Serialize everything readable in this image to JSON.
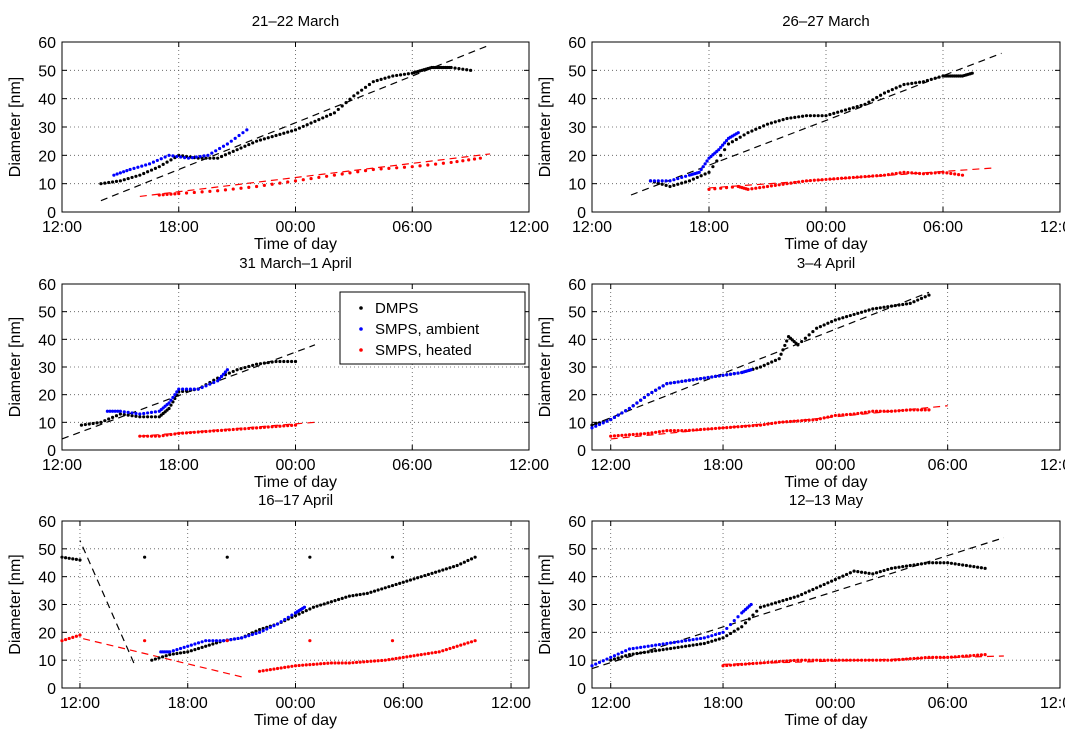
{
  "figure": {
    "xlabel": "Time of day",
    "ylabel": "Diameter [nm]",
    "legend": {
      "placement": "inside panel 3, top-right",
      "entries": [
        {
          "label": "DMPS",
          "color": "#000000"
        },
        {
          "label": "SMPS, ambient",
          "color": "#0000ff"
        },
        {
          "label": "SMPS, heated",
          "color": "#ff0000"
        }
      ]
    }
  },
  "chart_data": [
    {
      "type": "scatter",
      "title": "21–22 March",
      "xlabel": "Time of day",
      "ylabel": "Diameter [nm]",
      "xlim": [
        "12:00",
        "12:00 next day"
      ],
      "ylim": [
        0,
        60
      ],
      "xticks": [
        "12:00",
        "18:00",
        "00:00",
        "06:00",
        "12:00"
      ],
      "yticks": [
        0,
        10,
        20,
        30,
        40,
        50,
        60
      ],
      "grid": true,
      "series": [
        {
          "name": "DMPS",
          "color": "#000000",
          "x": [
            "14:00",
            "15:00",
            "16:00",
            "17:00",
            "18:00",
            "19:00",
            "20:00",
            "21:00",
            "22:00",
            "23:00",
            "00:00",
            "01:00",
            "02:00",
            "03:00",
            "04:00",
            "05:00",
            "06:00",
            "06:30",
            "07:00",
            "07:30",
            "08:00",
            "09:00"
          ],
          "y": [
            10,
            11,
            13,
            16,
            20,
            19,
            19,
            22,
            25,
            27,
            29,
            32,
            35,
            41,
            46,
            48,
            49,
            50,
            51,
            51,
            51,
            50
          ]
        },
        {
          "name": "SMPS, ambient",
          "color": "#0000ff",
          "x": [
            "14:40",
            "15:30",
            "16:30",
            "17:30",
            "18:30",
            "19:30",
            "20:30",
            "21:30"
          ],
          "y": [
            13,
            15,
            17,
            20,
            19,
            20,
            24,
            29
          ]
        },
        {
          "name": "SMPS, heated",
          "color": "#ff0000",
          "x": [
            "17:00",
            "18:00",
            "20:00",
            "22:00",
            "00:00",
            "02:00",
            "04:00",
            "06:00",
            "08:00",
            "09:30"
          ],
          "y": [
            6,
            6.5,
            7.5,
            9,
            11,
            13,
            15,
            16,
            17.5,
            19
          ]
        }
      ],
      "fits": [
        {
          "color": "#000000",
          "x": [
            "14:00",
            "10:00"
          ],
          "y": [
            4,
            59
          ]
        },
        {
          "color": "#ff0000",
          "x": [
            "16:00",
            "10:00"
          ],
          "y": [
            5.5,
            20.5
          ]
        }
      ]
    },
    {
      "type": "scatter",
      "title": "26–27 March",
      "xlabel": "Time of day",
      "ylabel": "Diameter [nm]",
      "xlim": [
        "12:00",
        "12:00 next day"
      ],
      "ylim": [
        0,
        60
      ],
      "xticks": [
        "12:00",
        "18:00",
        "00:00",
        "06:00",
        "12:00"
      ],
      "yticks": [
        0,
        10,
        20,
        30,
        40,
        50,
        60
      ],
      "grid": true,
      "series": [
        {
          "name": "DMPS",
          "color": "#000000",
          "x": [
            "15:00",
            "16:00",
            "17:00",
            "18:00",
            "19:00",
            "20:00",
            "21:00",
            "22:00",
            "23:00",
            "00:00",
            "01:00",
            "02:00",
            "03:00",
            "04:00",
            "05:00",
            "06:00",
            "06:30",
            "07:00",
            "07:30"
          ],
          "y": [
            11,
            9,
            11,
            14,
            24,
            28,
            31,
            33,
            34,
            34,
            36,
            38,
            42,
            45,
            46,
            48,
            48,
            48,
            49
          ]
        },
        {
          "name": "SMPS, ambient",
          "color": "#0000ff",
          "x": [
            "15:00",
            "16:00",
            "17:00",
            "17:30",
            "18:00",
            "18:30",
            "19:00",
            "19:30"
          ],
          "y": [
            11,
            11,
            13,
            14,
            19,
            22,
            26,
            28
          ]
        },
        {
          "name": "SMPS, heated",
          "color": "#ff0000",
          "x": [
            "18:00",
            "19:30",
            "20:00",
            "21:00",
            "22:00",
            "23:00",
            "00:00",
            "01:00",
            "02:00",
            "03:00",
            "04:00",
            "05:00",
            "06:00",
            "07:00"
          ],
          "y": [
            8,
            9,
            8,
            9,
            10,
            11,
            11.5,
            12,
            12.5,
            13,
            14,
            13.5,
            14,
            13
          ]
        }
      ],
      "fits": [
        {
          "color": "#000000",
          "x": [
            "14:00",
            "09:00"
          ],
          "y": [
            6,
            56
          ]
        },
        {
          "color": "#ff0000",
          "x": [
            "18:00",
            "08:30"
          ],
          "y": [
            8.5,
            15.5
          ]
        }
      ]
    },
    {
      "type": "scatter",
      "title": "31 March–1 April",
      "xlabel": "Time of day",
      "ylabel": "Diameter [nm]",
      "xlim": [
        "12:00",
        "12:00 next day"
      ],
      "ylim": [
        0,
        60
      ],
      "xticks": [
        "12:00",
        "18:00",
        "00:00",
        "06:00",
        "12:00"
      ],
      "yticks": [
        0,
        10,
        20,
        30,
        40,
        50,
        60
      ],
      "grid": true,
      "series": [
        {
          "name": "DMPS",
          "color": "#000000",
          "x": [
            "13:00",
            "14:00",
            "15:00",
            "16:00",
            "17:00",
            "17:30",
            "18:00",
            "19:00",
            "20:00",
            "21:00",
            "22:00",
            "23:00",
            "00:00"
          ],
          "y": [
            9,
            10,
            13,
            12,
            12,
            15,
            21,
            22,
            26,
            29,
            31,
            32,
            32
          ]
        },
        {
          "name": "SMPS, ambient",
          "color": "#0000ff",
          "x": [
            "14:20",
            "15:00",
            "16:00",
            "17:00",
            "17:30",
            "18:00",
            "19:00",
            "20:00",
            "20:30"
          ],
          "y": [
            14,
            14,
            13,
            14,
            17,
            22,
            22,
            25,
            29
          ]
        },
        {
          "name": "SMPS, heated",
          "color": "#ff0000",
          "x": [
            "16:00",
            "17:00",
            "18:00",
            "19:00",
            "20:00",
            "21:00",
            "22:00",
            "23:00",
            "00:00"
          ],
          "y": [
            5,
            5,
            6,
            6.5,
            7,
            7.5,
            8,
            8.5,
            9
          ]
        }
      ],
      "fits": [
        {
          "color": "#000000",
          "x": [
            "12:00",
            "01:00"
          ],
          "y": [
            4,
            38
          ]
        },
        {
          "color": "#ff0000",
          "x": [
            "16:00",
            "01:00"
          ],
          "y": [
            5,
            10
          ]
        }
      ]
    },
    {
      "type": "scatter",
      "title": "3–4 April",
      "xlabel": "Time of day",
      "ylabel": "Diameter [nm]",
      "xlim": [
        "11:00",
        "12:00 next day"
      ],
      "ylim": [
        0,
        60
      ],
      "xticks": [
        "12:00",
        "18:00",
        "00:00",
        "06:00",
        "12:00"
      ],
      "yticks": [
        0,
        10,
        20,
        30,
        40,
        50,
        60
      ],
      "grid": true,
      "series": [
        {
          "name": "DMPS",
          "color": "#000000",
          "x": [
            "11:00",
            "12:00",
            "13:00",
            "14:00",
            "15:00",
            "16:00",
            "17:00",
            "18:00",
            "19:00",
            "20:00",
            "21:00",
            "21:30",
            "22:00",
            "23:00",
            "00:00",
            "01:00",
            "02:00",
            "03:00",
            "04:00",
            "05:00"
          ],
          "y": [
            9,
            11,
            15,
            20,
            24,
            25,
            26,
            27,
            28,
            30,
            33,
            41,
            38,
            44,
            47,
            49,
            51,
            52,
            53,
            56
          ]
        },
        {
          "name": "SMPS, ambient",
          "color": "#0000ff",
          "x": [
            "11:00",
            "12:00",
            "13:00",
            "14:00",
            "15:00",
            "16:00",
            "17:00",
            "18:00",
            "19:00",
            "19:30"
          ],
          "y": [
            8,
            11,
            15,
            20,
            24,
            25,
            26,
            27,
            28,
            29
          ]
        },
        {
          "name": "SMPS, heated",
          "color": "#ff0000",
          "x": [
            "12:00",
            "13:00",
            "14:00",
            "15:00",
            "16:00",
            "17:00",
            "18:00",
            "19:00",
            "20:00",
            "21:00",
            "22:00",
            "23:00",
            "00:00",
            "01:00",
            "02:00",
            "03:00",
            "04:00",
            "05:00"
          ],
          "y": [
            5,
            5.5,
            6,
            7,
            7,
            7.5,
            8,
            8.5,
            9,
            10,
            10.5,
            11,
            12.5,
            13,
            14,
            14,
            14.5,
            14.5
          ]
        }
      ],
      "fits": [
        {
          "color": "#000000",
          "x": [
            "11:00",
            "05:00"
          ],
          "y": [
            9,
            57
          ]
        },
        {
          "color": "#ff0000",
          "x": [
            "12:00",
            "06:00"
          ],
          "y": [
            4,
            16
          ]
        }
      ]
    },
    {
      "type": "scatter",
      "title": "16–17 April",
      "xlabel": "Time of day",
      "ylabel": "Diameter [nm]",
      "xlim": [
        "11:00",
        "13:00 next day"
      ],
      "ylim": [
        0,
        60
      ],
      "xticks": [
        "12:00",
        "18:00",
        "00:00",
        "06:00",
        "12:00"
      ],
      "yticks": [
        0,
        10,
        20,
        30,
        40,
        50,
        60
      ],
      "grid": true,
      "series": [
        {
          "name": "DMPS",
          "color": "#000000",
          "x": [
            "16:00",
            "17:00",
            "18:00",
            "19:00",
            "20:00",
            "21:00",
            "22:00",
            "23:00",
            "00:00",
            "01:00",
            "02:00",
            "03:00",
            "04:00",
            "05:00",
            "06:00",
            "07:00",
            "08:00",
            "09:00",
            "10:00",
            "11:00",
            "12:00"
          ],
          "y": [
            10,
            12,
            13,
            15,
            17,
            18,
            21,
            23,
            26,
            29,
            31,
            33,
            34,
            36,
            38,
            40,
            42,
            44,
            47,
            47,
            46
          ]
        },
        {
          "name": "SMPS, ambient",
          "color": "#0000ff",
          "x": [
            "16:30",
            "17:00",
            "18:00",
            "19:00",
            "20:00",
            "21:00",
            "22:00",
            "23:00",
            "00:00",
            "00:30"
          ],
          "y": [
            13,
            13,
            15,
            17,
            17,
            18,
            20,
            23,
            27,
            29
          ]
        },
        {
          "name": "SMPS, heated",
          "color": "#ff0000",
          "x": [
            "22:00",
            "23:00",
            "00:00",
            "01:00",
            "02:00",
            "03:00",
            "04:00",
            "05:00",
            "06:00",
            "07:00",
            "08:00",
            "09:00",
            "10:00",
            "11:00",
            "12:00"
          ],
          "y": [
            6,
            7,
            8,
            8.5,
            9,
            9,
            9.5,
            10,
            11,
            12,
            13,
            15,
            17,
            17,
            19
          ]
        }
      ],
      "fits": [
        {
          "color": "#000000",
          "x": [
            "15:00",
            "12:00"
          ],
          "y": [
            9,
            53
          ]
        },
        {
          "color": "#ff0000",
          "x": [
            "21:00",
            "12:00"
          ],
          "y": [
            4,
            18
          ]
        }
      ]
    },
    {
      "type": "scatter",
      "title": "12–13 May",
      "xlabel": "Time of day",
      "ylabel": "Diameter [nm]",
      "xlim": [
        "11:00",
        "12:00 next day"
      ],
      "ylim": [
        0,
        60
      ],
      "xticks": [
        "12:00",
        "18:00",
        "00:00",
        "06:00",
        "12:00"
      ],
      "yticks": [
        0,
        10,
        20,
        30,
        40,
        50,
        60
      ],
      "grid": true,
      "series": [
        {
          "name": "DMPS",
          "color": "#000000",
          "x": [
            "12:00",
            "13:00",
            "14:00",
            "15:00",
            "16:00",
            "17:00",
            "18:00",
            "19:00",
            "20:00",
            "21:00",
            "22:00",
            "23:00",
            "00:00",
            "01:00",
            "02:00",
            "03:00",
            "04:00",
            "05:00",
            "06:00",
            "07:00",
            "08:00"
          ],
          "y": [
            10,
            12,
            13,
            14,
            15,
            16,
            18,
            22,
            29,
            31,
            33,
            36,
            39,
            42,
            41,
            43,
            44,
            45,
            45,
            44,
            43
          ]
        },
        {
          "name": "SMPS, ambient",
          "color": "#0000ff",
          "x": [
            "11:00",
            "12:00",
            "13:00",
            "14:00",
            "15:00",
            "16:00",
            "17:00",
            "18:00",
            "19:00",
            "19:30"
          ],
          "y": [
            8,
            11,
            14,
            15,
            16,
            17,
            18,
            20,
            27,
            30
          ]
        },
        {
          "name": "SMPS, heated",
          "color": "#ff0000",
          "x": [
            "18:00",
            "19:00",
            "20:00",
            "21:00",
            "22:00",
            "23:00",
            "00:00",
            "01:00",
            "02:00",
            "03:00",
            "04:00",
            "05:00",
            "06:00",
            "07:00",
            "08:00"
          ],
          "y": [
            8,
            8.5,
            9,
            9.5,
            10,
            10,
            10,
            10,
            10,
            10,
            10.5,
            11,
            11,
            11.5,
            12
          ]
        }
      ],
      "fits": [
        {
          "color": "#000000",
          "x": [
            "11:00",
            "09:00"
          ],
          "y": [
            7,
            54
          ]
        },
        {
          "color": "#ff0000",
          "x": [
            "18:00",
            "09:00"
          ],
          "y": [
            8.5,
            11.5
          ]
        }
      ]
    }
  ]
}
